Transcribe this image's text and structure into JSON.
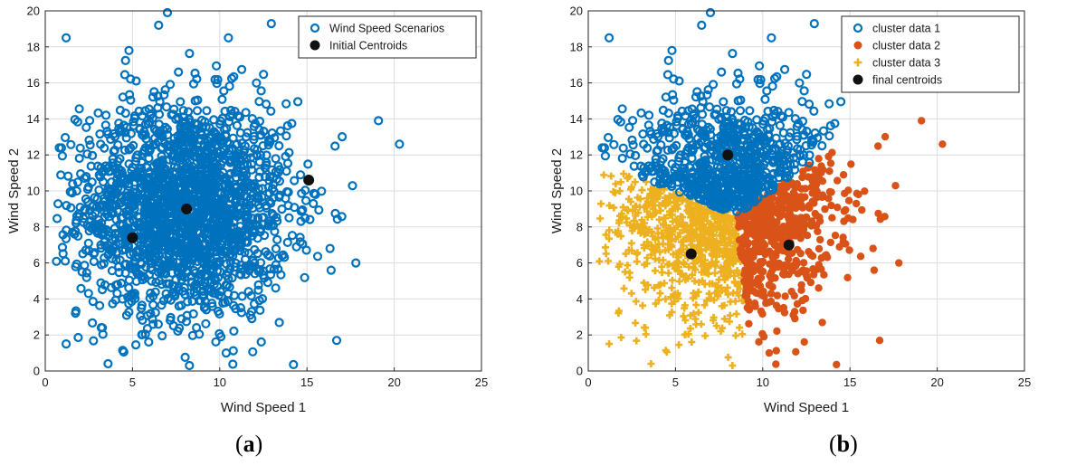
{
  "colors": {
    "blue": "#0072bd",
    "orange": "#d95319",
    "yellow": "#edb120",
    "black": "#111111",
    "grid": "#dcdcdc"
  },
  "panels": [
    {
      "open": "(",
      "letter": "a",
      "close": ")"
    },
    {
      "open": "(",
      "letter": "b",
      "close": ")"
    }
  ],
  "chart_data": [
    {
      "type": "scatter",
      "title": "",
      "xlabel": "Wind Speed 1",
      "ylabel": "Wind Speed 2",
      "xlim": [
        0,
        25
      ],
      "ylim": [
        0,
        20
      ],
      "xticks": [
        0,
        5,
        10,
        15,
        20,
        25
      ],
      "yticks": [
        0,
        2,
        4,
        6,
        8,
        10,
        12,
        14,
        16,
        18,
        20
      ],
      "grid": true,
      "legend_position": "top-right",
      "distribution": {
        "center": [
          8,
          9
        ],
        "std": [
          3.0,
          3.0
        ],
        "count": 2000
      },
      "series": [
        {
          "name": "Wind Speed Scenarios",
          "marker": "open-circle",
          "color": "#0072bd",
          "outliers": [
            [
              1.2,
              18.5
            ],
            [
              7,
              19.9
            ],
            [
              6.5,
              19.2
            ],
            [
              16.5,
              18.8
            ],
            [
              20.3,
              12.6
            ],
            [
              19.1,
              13.9
            ],
            [
              17.8,
              6.0
            ],
            [
              16.7,
              1.7
            ],
            [
              3.6,
              0.4
            ],
            [
              1.2,
              1.5
            ],
            [
              10.5,
              18.5
            ],
            [
              4.8,
              17.8
            ]
          ]
        },
        {
          "name": "Initial Centroids",
          "marker": "filled-dot",
          "color": "#111111",
          "points": [
            [
              5.0,
              7.4
            ],
            [
              8.1,
              9.0
            ],
            [
              15.1,
              10.6
            ]
          ]
        }
      ]
    },
    {
      "type": "scatter",
      "title": "",
      "xlabel": "Wind Speed 1",
      "ylabel": "Wind Speed 2",
      "xlim": [
        0,
        25
      ],
      "ylim": [
        0,
        20
      ],
      "xticks": [
        0,
        5,
        10,
        15,
        20,
        25
      ],
      "yticks": [
        0,
        2,
        4,
        6,
        8,
        10,
        12,
        14,
        16,
        18,
        20
      ],
      "grid": true,
      "legend_position": "top-right",
      "series": [
        {
          "name": "cluster data 1",
          "marker": "open-circle",
          "color": "#0072bd"
        },
        {
          "name": "cluster data 2",
          "marker": "filled-circle",
          "color": "#d95319"
        },
        {
          "name": "cluster data 3",
          "marker": "plus",
          "color": "#edb120"
        },
        {
          "name": "final centroids",
          "marker": "filled-dot",
          "color": "#111111",
          "points": [
            [
              8.0,
              12.0
            ],
            [
              11.5,
              7.0
            ],
            [
              5.9,
              6.5
            ]
          ]
        }
      ]
    }
  ]
}
